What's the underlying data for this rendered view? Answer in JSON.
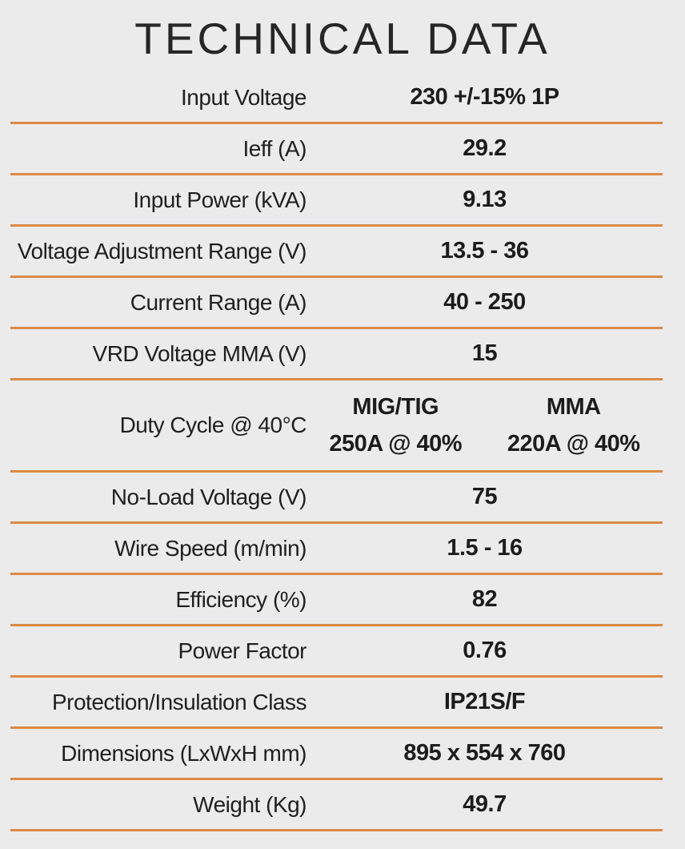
{
  "page": {
    "background_color": "#EBEBEB",
    "accent_line_color": "#DC8A45",
    "text_color": "#1C1C1C"
  },
  "title": "TECHNICAL DATA",
  "table": {
    "rows": [
      {
        "label": "Input Voltage",
        "value": "230 +/-15% 1P"
      },
      {
        "label": "Ieff (A)",
        "value": "29.2"
      },
      {
        "label": "Input Power (kVA)",
        "value": "9.13"
      },
      {
        "label": "Voltage Adjustment Range (V)",
        "value": "13.5 - 36"
      },
      {
        "label": "Current Range (A)",
        "value": "40 - 250"
      },
      {
        "label": "VRD Voltage MMA (V)",
        "value": "15"
      },
      {
        "label": "Duty Cycle @ 40°C",
        "columns": [
          {
            "name": "MIG/TIG",
            "value": "250A @ 40%"
          },
          {
            "name": "MMA",
            "value": "220A @ 40%"
          }
        ]
      },
      {
        "label": "No-Load Voltage (V)",
        "value": "75"
      },
      {
        "label": "Wire Speed (m/min)",
        "value": "1.5 - 16"
      },
      {
        "label": "Efficiency (%)",
        "value": "82"
      },
      {
        "label": "Power Factor",
        "value": "0.76"
      },
      {
        "label": "Protection/Insulation Class",
        "value": "IP21S/F"
      },
      {
        "label": "Dimensions (LxWxH mm)",
        "value": "895 x 554 x 760"
      },
      {
        "label": "Weight (Kg)",
        "value": "49.7"
      }
    ]
  }
}
